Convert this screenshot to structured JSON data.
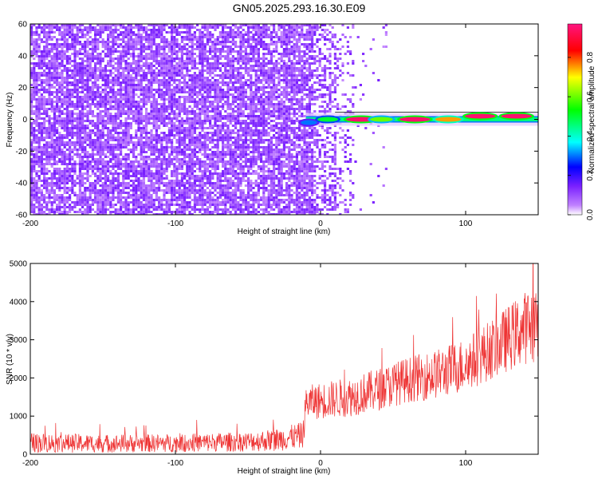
{
  "title": "GN05.2025.293.16.30.E09",
  "chart_data": [
    {
      "type": "heatmap",
      "xlabel": "Height of straight line (km)",
      "ylabel": "Frequency (Hz)",
      "xlim": [
        -200,
        150
      ],
      "ylim": [
        -60,
        60
      ],
      "xticks": [
        -200,
        -100,
        0,
        100
      ],
      "yticks": [
        -60,
        -40,
        -20,
        0,
        20,
        40,
        60
      ],
      "colorbar": {
        "label": "Normalized spectral amplitude",
        "range": [
          0,
          0.97
        ],
        "ticks": [
          0.0,
          0.2,
          0.4,
          0.6,
          0.8
        ],
        "colormap": [
          "#ffffff",
          "#a020f0",
          "#0000ff",
          "#00ffff",
          "#00ff00",
          "#ffff00",
          "#ff0000",
          "#ff1493"
        ]
      },
      "noise_region": {
        "x": [
          -200,
          20
        ],
        "amplitude": 0.12
      },
      "signal_band": {
        "x_start": -10,
        "x_end": 150,
        "frequency_hz": 0
      },
      "hotspots": [
        {
          "x": -8,
          "y": -2,
          "amplitude": 0.3
        },
        {
          "x": 5,
          "y": 0,
          "amplitude": 0.5
        },
        {
          "x": 28,
          "y": 0,
          "amplitude": 0.95
        },
        {
          "x": 42,
          "y": 0,
          "amplitude": 0.6
        },
        {
          "x": 65,
          "y": 0,
          "amplitude": 0.95
        },
        {
          "x": 88,
          "y": 0,
          "amplitude": 0.75
        },
        {
          "x": 110,
          "y": 2,
          "amplitude": 0.95
        },
        {
          "x": 135,
          "y": 2,
          "amplitude": 0.95
        }
      ]
    },
    {
      "type": "line",
      "xlabel": "Height of straight line (km)",
      "ylabel": "SNR (10 * v/v)",
      "xlim": [
        -200,
        150
      ],
      "ylim": [
        0,
        5000
      ],
      "xticks": [
        -200,
        -100,
        0,
        100
      ],
      "yticks": [
        0,
        1000,
        2000,
        3000,
        4000,
        5000
      ],
      "series_color": "#ee3333",
      "trend": {
        "x": [
          -200,
          -150,
          -100,
          -50,
          -30,
          -12,
          -10,
          0,
          20,
          40,
          60,
          80,
          100,
          120,
          140,
          150
        ],
        "baseline": [
          300,
          280,
          290,
          330,
          380,
          500,
          1350,
          1400,
          1500,
          1700,
          1950,
          2100,
          2350,
          2800,
          3300,
          3500
        ],
        "amplitude": [
          260,
          240,
          240,
          260,
          300,
          350,
          450,
          480,
          520,
          560,
          600,
          650,
          720,
          800,
          950,
          1100
        ]
      }
    }
  ]
}
